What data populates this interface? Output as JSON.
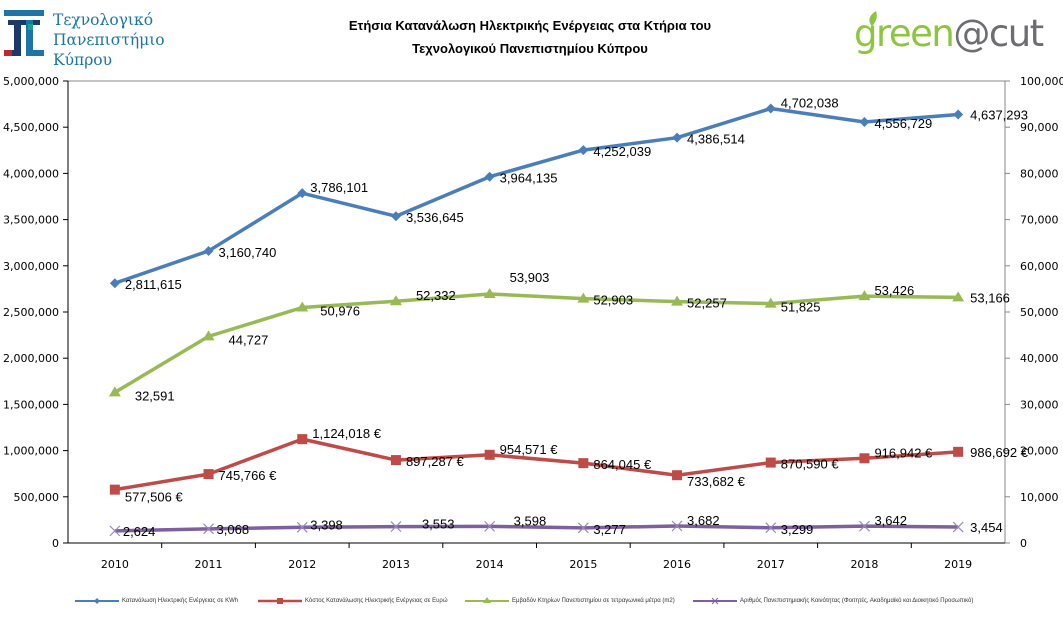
{
  "header": {
    "university_logo_lines": [
      "Τεχνολογικό",
      "Πανεπιστήμιο",
      "Κύπρου"
    ],
    "title_lines": [
      "Ετήσια Κατανάλωση Ηλεκτρικής Ενέργειας στα Κτήρια του",
      "Τεχνολογικού Πανεπιστημίου Κύπρου"
    ],
    "brand_logo": {
      "part1": "green",
      "part2": "@cut"
    }
  },
  "colors": {
    "blue": "#4a7ebb",
    "red": "#be4b48",
    "green": "#98b954",
    "purple": "#7d60a0",
    "logo_blue": "#1b75a6",
    "brand_green": "#8cc63f",
    "brand_gray": "#6d6e71"
  },
  "chart_data": {
    "type": "line",
    "title": "Ετήσια Κατανάλωση Ηλεκτρικής Ενέργειας στα Κτήρια του Τεχνολογικού Πανεπιστημίου Κύπρου",
    "categories": [
      "2010",
      "2011",
      "2012",
      "2013",
      "2014",
      "2015",
      "2016",
      "2017",
      "2018",
      "2019"
    ],
    "y_left": {
      "ylim": [
        0,
        5000000
      ],
      "ticks": [
        0,
        500000,
        1000000,
        1500000,
        2000000,
        2500000,
        3000000,
        3500000,
        4000000,
        4500000,
        5000000
      ],
      "tick_labels": [
        "0",
        "500,000",
        "1,000,000",
        "1,500,000",
        "2,000,000",
        "2,500,000",
        "3,000,000",
        "3,500,000",
        "4,000,000",
        "4,500,000",
        "5,000,000"
      ]
    },
    "y_right": {
      "ylim": [
        0,
        100000
      ],
      "ticks": [
        0,
        10000,
        20000,
        30000,
        40000,
        50000,
        60000,
        70000,
        80000,
        90000,
        100000
      ],
      "tick_labels": [
        "0",
        "10,000",
        "20,000",
        "30,000",
        "40,000",
        "50,000",
        "60,000",
        "70,000",
        "80,000",
        "90,000",
        "100,000"
      ]
    },
    "grid": false,
    "legend_position": "bottom",
    "series": [
      {
        "name": "Κατανάλωση Ηλεκτρικής Ενέργειας σε KWh",
        "axis": "left",
        "color": "#4a7ebb",
        "marker": "diamond",
        "values": [
          2811615,
          3160740,
          3786101,
          3536645,
          3964135,
          4252039,
          4386514,
          4702038,
          4556729,
          4637293
        ],
        "labels": [
          "2,811,615",
          "3,160,740",
          "3,786,101",
          "3,536,645",
          "3,964,135",
          "4,252,039",
          "4,386,514",
          "4,702,038",
          "4,556,729",
          "4,637,293"
        ]
      },
      {
        "name": "Κόστος Κατανάλωσης Ηλεκτρικής Ενέργειας σε Ευρώ",
        "axis": "left",
        "color": "#be4b48",
        "marker": "square",
        "values": [
          577506,
          745766,
          1124018,
          897287,
          954571,
          864045,
          733682,
          870590,
          916942,
          986692
        ],
        "labels": [
          "577,506 €",
          "745,766 €",
          "1,124,018 €",
          "897,287 €",
          "954,571 €",
          "864,045 €",
          "733,682 €",
          "870,590 €",
          "916,942 €",
          "986,692 €"
        ]
      },
      {
        "name": "Εμβαδόν Κτηρίων Πανεπιστημίου σε τετραγωνικά μέτρα (m2)",
        "axis": "right",
        "color": "#98b954",
        "marker": "triangle",
        "values": [
          32591,
          44727,
          50976,
          52332,
          53903,
          52903,
          52257,
          51825,
          53426,
          53166
        ],
        "labels": [
          "32,591",
          "44,727",
          "50,976",
          "52,332",
          "53,903",
          "52,903",
          "52,257",
          "51,825",
          "53,426",
          "53,166"
        ]
      },
      {
        "name": "Αριθμός Πανεπιστημιακής Κοινότητας (Φοιτητές, Ακαδημαϊκό και Διοικητικό Προσωπικό)",
        "axis": "right",
        "color": "#7d60a0",
        "marker": "x",
        "values": [
          2624,
          3068,
          3398,
          3553,
          3598,
          3277,
          3682,
          3299,
          3642,
          3454
        ],
        "labels": [
          "2,624",
          "3,068",
          "3,398",
          "3,553",
          "3,598",
          "3,277",
          "3,682",
          "3,299",
          "3,642",
          "3,454"
        ]
      }
    ]
  }
}
